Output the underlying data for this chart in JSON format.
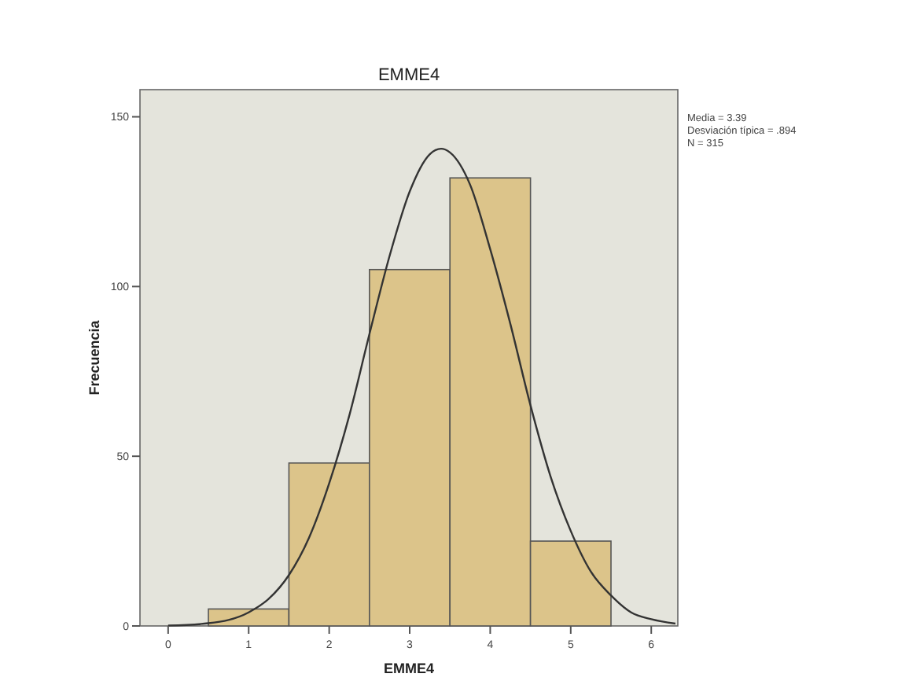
{
  "chart_data": {
    "type": "histogram",
    "title": "EMME4",
    "xlabel": "EMME4",
    "ylabel": "Frecuencia",
    "bins": [
      0.5,
      1.5,
      2.5,
      3.5,
      4.5,
      5.5
    ],
    "series": [
      {
        "color": "#dcc48a",
        "values": [
          5,
          48,
          105,
          132,
          25
        ]
      },
      {
        "type": "line",
        "color": "#333333",
        "x": [
          0,
          0.5,
          1,
          1.25,
          1.5,
          1.75,
          2,
          2.25,
          2.5,
          2.75,
          3,
          3.25,
          3.39,
          3.5,
          3.75,
          4,
          4.25,
          4.5,
          4.75,
          5,
          5.25,
          5.5,
          5.75,
          6,
          6.3
        ],
        "values": [
          0.1,
          0.8,
          4,
          8,
          15,
          26,
          42,
          62,
          86,
          109,
          128,
          139,
          140.6,
          139.5,
          130,
          111,
          89,
          65,
          44,
          28,
          16,
          9,
          4,
          2,
          0.7
        ]
      }
    ],
    "xlim": [
      -0.35,
      6.33
    ],
    "ylim": [
      0,
      158
    ],
    "xticks": [
      0,
      1,
      2,
      3,
      4,
      5,
      6
    ],
    "yticks": [
      0,
      50,
      100,
      150
    ],
    "grid": false,
    "annotations": [
      "Media = 3.39",
      "Desviación típica = .894",
      "N = 315"
    ]
  }
}
